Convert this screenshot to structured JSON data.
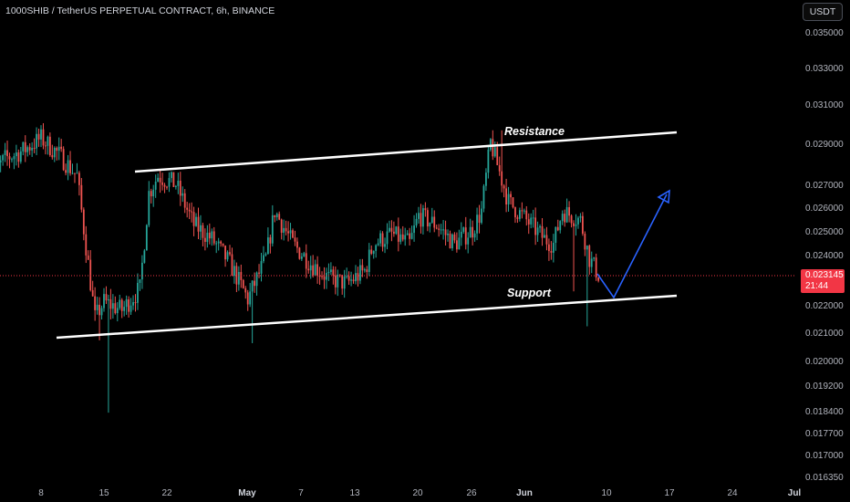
{
  "header": {
    "title": "1000SHIB / TetherUS PERPETUAL CONTRACT, 6h, BINANCE",
    "currency_button": "USDT"
  },
  "price_badge": {
    "price": "0.023145",
    "countdown": "21:44"
  },
  "colors": {
    "up": "#26a69a",
    "down": "#ef5350",
    "channel": "#ffffff",
    "projection": "#2962ff",
    "badge": "#f23645",
    "background": "#000000"
  },
  "chart_data": {
    "type": "candlestick",
    "y_scale": "log",
    "ylim": [
      0.01635,
      0.0362
    ],
    "y_ticks": [
      "0.035000",
      "0.033000",
      "0.031000",
      "0.029000",
      "0.027000",
      "0.026000",
      "0.025000",
      "0.024000",
      "0.022000",
      "0.021000",
      "0.020000",
      "0.019200",
      "0.018400",
      "0.017700",
      "0.017000",
      "0.016350"
    ],
    "x_ticks": [
      {
        "label": "8",
        "bold": false
      },
      {
        "label": "15",
        "bold": false
      },
      {
        "label": "22",
        "bold": false
      },
      {
        "label": "May",
        "bold": true
      },
      {
        "label": "7",
        "bold": false
      },
      {
        "label": "13",
        "bold": false
      },
      {
        "label": "20",
        "bold": false
      },
      {
        "label": "26",
        "bold": false
      },
      {
        "label": "Jun",
        "bold": true
      },
      {
        "label": "10",
        "bold": false
      },
      {
        "label": "17",
        "bold": false
      },
      {
        "label": "24",
        "bold": false
      },
      {
        "label": "Jul",
        "bold": true
      }
    ],
    "approx_close_path": [
      {
        "x": "Apr 2",
        "y": 0.0272
      },
      {
        "x": "Apr 4",
        "y": 0.0282
      },
      {
        "x": "Apr 6",
        "y": 0.0286
      },
      {
        "x": "Apr 8",
        "y": 0.0292
      },
      {
        "x": "Apr 10",
        "y": 0.0284
      },
      {
        "x": "Apr 12",
        "y": 0.0274
      },
      {
        "x": "Apr 13",
        "y": 0.0243
      },
      {
        "x": "Apr 14",
        "y": 0.0215
      },
      {
        "x": "Apr 15",
        "y": 0.0221
      },
      {
        "x": "Apr 17",
        "y": 0.0218
      },
      {
        "x": "Apr 19",
        "y": 0.0226
      },
      {
        "x": "Apr 20",
        "y": 0.0266
      },
      {
        "x": "Apr 21",
        "y": 0.0274
      },
      {
        "x": "Apr 23",
        "y": 0.027
      },
      {
        "x": "Apr 25",
        "y": 0.0252
      },
      {
        "x": "Apr 27",
        "y": 0.0246
      },
      {
        "x": "Apr 29",
        "y": 0.0236
      },
      {
        "x": "May 1",
        "y": 0.0222
      },
      {
        "x": "May 3",
        "y": 0.0238
      },
      {
        "x": "May 4",
        "y": 0.0258
      },
      {
        "x": "May 6",
        "y": 0.0244
      },
      {
        "x": "May 8",
        "y": 0.0236
      },
      {
        "x": "May 10",
        "y": 0.023
      },
      {
        "x": "May 12",
        "y": 0.0228
      },
      {
        "x": "May 14",
        "y": 0.0233
      },
      {
        "x": "May 15",
        "y": 0.0244
      },
      {
        "x": "May 17",
        "y": 0.0248
      },
      {
        "x": "May 19",
        "y": 0.0244
      },
      {
        "x": "May 20",
        "y": 0.0256
      },
      {
        "x": "May 22",
        "y": 0.0252
      },
      {
        "x": "May 24",
        "y": 0.0244
      },
      {
        "x": "May 26",
        "y": 0.025
      },
      {
        "x": "May 27",
        "y": 0.0258
      },
      {
        "x": "May 28",
        "y": 0.029
      },
      {
        "x": "May 30",
        "y": 0.0262
      },
      {
        "x": "Jun 1",
        "y": 0.0254
      },
      {
        "x": "Jun 3",
        "y": 0.0246
      },
      {
        "x": "Jun 4",
        "y": 0.0244
      },
      {
        "x": "Jun 5",
        "y": 0.0258
      },
      {
        "x": "Jun 7",
        "y": 0.0254
      },
      {
        "x": "Jun 8",
        "y": 0.0238
      },
      {
        "x": "Jun 9",
        "y": 0.02315
      }
    ],
    "lines": [
      {
        "name": "resistance",
        "start": {
          "x": "Apr 18",
          "y": 0.0278
        },
        "end": {
          "x": "Jun 17",
          "y": 0.0298
        }
      },
      {
        "name": "support",
        "start": {
          "x": "Apr 9",
          "y": 0.0207
        },
        "end": {
          "x": "Jun 17",
          "y": 0.0225
        }
      }
    ],
    "projection": [
      {
        "x": "Jun 9",
        "y": 0.02315
      },
      {
        "x": "Jun 11",
        "y": 0.0224
      },
      {
        "x": "Jun 17",
        "y": 0.0268
      }
    ],
    "annotations": [
      {
        "text": "Resistance"
      },
      {
        "text": "Support"
      }
    ],
    "current_price": 0.023145
  }
}
